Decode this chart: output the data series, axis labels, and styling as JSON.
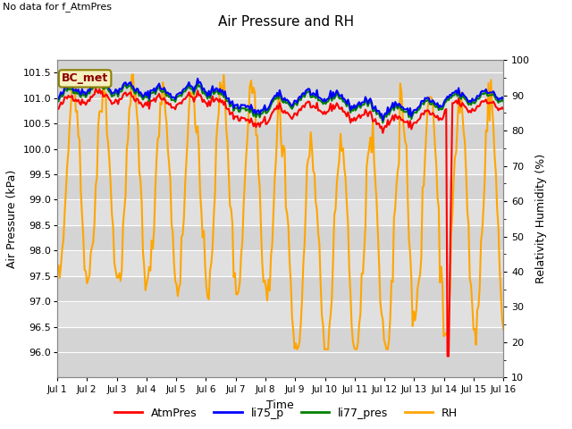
{
  "title": "Air Pressure and RH",
  "subtitle": "No data for f_AtmPres",
  "xlabel": "Time",
  "ylabel_left": "Air Pressure (kPa)",
  "ylabel_right": "Relativity Humidity (%)",
  "box_label": "BC_met",
  "legend_labels": [
    "AtmPres",
    "li75_p",
    "li77_pres",
    "RH"
  ],
  "legend_colors": [
    "red",
    "blue",
    "green",
    "orange"
  ],
  "ylim_left": [
    95.5,
    101.75
  ],
  "ylim_right": [
    10,
    100
  ],
  "yticks_left": [
    96.0,
    96.5,
    97.0,
    97.5,
    98.0,
    98.5,
    99.0,
    99.5,
    100.0,
    100.5,
    101.0,
    101.5
  ],
  "yticks_right": [
    10,
    20,
    30,
    40,
    50,
    60,
    70,
    80,
    90,
    100
  ],
  "band_colors": [
    "#d4d4d4",
    "#e0e0e0"
  ],
  "plot_bg_color": "#d4d4d4",
  "n_days": 15,
  "seed": 42,
  "line_width": 1.5
}
